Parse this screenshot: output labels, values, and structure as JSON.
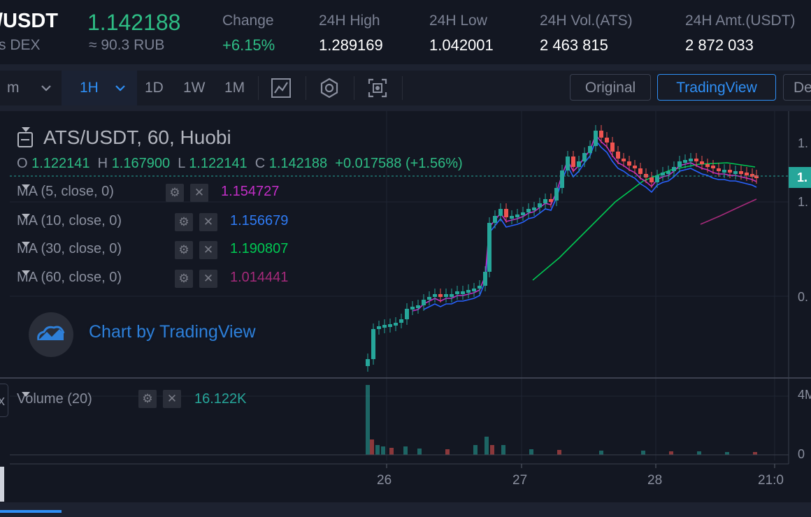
{
  "ticker": {
    "pair": "/USDT",
    "pair_sub": "s DEX",
    "price": "1.142188",
    "price_rub": "≈ 90.3 RUB",
    "stats": [
      {
        "label": "Change",
        "value": "+6.15%"
      },
      {
        "label": "24H High",
        "value": "1.289169"
      },
      {
        "label": "24H Low",
        "value": "1.042001"
      },
      {
        "label": "24H Vol.(ATS)",
        "value": "2 463 815"
      },
      {
        "label": "24H Amt.(USDT)",
        "value": "2 872 033"
      }
    ]
  },
  "toolbar": {
    "min_label": "m",
    "interval_active": "1H",
    "intervals": [
      "1D",
      "1W",
      "1M"
    ],
    "icons": [
      "indicator-icon",
      "settings-icon",
      "screenshot-icon"
    ],
    "views": {
      "original": "Original",
      "tradingview": "TradingView",
      "depth": "De"
    }
  },
  "chart": {
    "title": "ATS/USDT, 60, Huobi",
    "ohlc": {
      "o_label": "O",
      "o": "1.122141",
      "h_label": "H",
      "h": "1.167900",
      "l_label": "L",
      "l": "1.122141",
      "c_label": "C",
      "c": "1.142188",
      "change": "+0.017588 (+1.56%)"
    },
    "indicators": [
      {
        "label": "MA (5, close, 0)",
        "value": "1.154727",
        "color": "#c22ec6"
      },
      {
        "label": "MA (10, close, 0)",
        "value": "1.156679",
        "color": "#2962ff"
      },
      {
        "label": "MA (30, close, 0)",
        "value": "1.190807",
        "color": "#00c853"
      },
      {
        "label": "MA (60, close, 0)",
        "value": "1.014441",
        "color": "#a52a7a"
      }
    ],
    "volume": {
      "label": "Volume (20)",
      "value": "16.122K"
    },
    "branding": "Chart by TradingView",
    "price_axis_labels": [
      "1.",
      "1.",
      "0."
    ],
    "volume_axis_labels": [
      "4M",
      "0"
    ],
    "time_labels": [
      "26",
      "27",
      "28",
      "21:0"
    ],
    "volume_button": "x",
    "colors": {
      "up": "#26a69a",
      "down": "#ef5350",
      "accent": "#2f8ff5",
      "bg": "#131722"
    }
  }
}
